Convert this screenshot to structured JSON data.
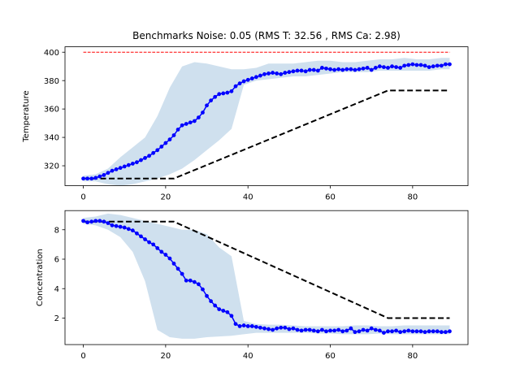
{
  "figure": {
    "title": "Benchmarks Noise: 0.05 (RMS T: 32.56 , RMS Ca: 2.98)"
  },
  "colors": {
    "data_series": "#0000ff",
    "band": "#cfe0ee",
    "target": "#000000",
    "limit": "#ff0000"
  },
  "chart_data": [
    {
      "type": "line",
      "ylabel": "Temperature",
      "xlim": [
        -4.45,
        93.45
      ],
      "ylim": [
        306.0,
        403.8
      ],
      "xticks": [
        0,
        20,
        40,
        60,
        80
      ],
      "yticks": [
        320,
        340,
        360,
        380,
        400
      ],
      "series": [
        {
          "style": "line-with-dots",
          "x": [
            0,
            1,
            2,
            3,
            4,
            5,
            6,
            7,
            8,
            9,
            10,
            11,
            12,
            13,
            14,
            15,
            16,
            17,
            18,
            19,
            20,
            21,
            22,
            23,
            24,
            25,
            26,
            27,
            28,
            29,
            30,
            31,
            32,
            33,
            34,
            35,
            36,
            37,
            38,
            39,
            40,
            41,
            42,
            43,
            44,
            45,
            46,
            47,
            48,
            49,
            50,
            51,
            52,
            53,
            54,
            55,
            56,
            57,
            58,
            59,
            60,
            61,
            62,
            63,
            64,
            65,
            66,
            67,
            68,
            69,
            70,
            71,
            72,
            73,
            74,
            75,
            76,
            77,
            78,
            79,
            80,
            81,
            82,
            83,
            84,
            85,
            86,
            87,
            88,
            89
          ],
          "values": [
            311,
            311,
            311,
            311.5,
            312.5,
            313.5,
            315,
            316.5,
            317.5,
            318.5,
            319.5,
            320.5,
            321.5,
            322.5,
            324,
            325.5,
            327,
            329,
            331,
            333.5,
            336,
            338.5,
            341.5,
            345.5,
            348.5,
            349.5,
            350.5,
            351.5,
            354,
            357.5,
            362.5,
            366,
            368.5,
            370.5,
            371,
            371.5,
            372.5,
            376,
            378,
            379.5,
            380.5,
            381.5,
            382.5,
            383.5,
            384.5,
            385,
            385.5,
            385,
            384.5,
            385.5,
            386,
            386.5,
            387,
            387,
            386.5,
            387.5,
            387.5,
            387,
            389,
            388.5,
            388,
            387.5,
            388,
            387.5,
            388,
            388,
            387.5,
            388,
            388.5,
            389,
            387.5,
            389,
            390,
            389.5,
            389,
            390,
            389.5,
            389,
            390.5,
            391,
            391.5,
            391,
            391,
            390.5,
            389.5,
            390,
            390.5,
            390.5,
            391.5,
            391.5
          ]
        },
        {
          "style": "band",
          "x": [
            0,
            3,
            6,
            9,
            12,
            15,
            18,
            21,
            24,
            27,
            30,
            33,
            36,
            39,
            42,
            45,
            48,
            51,
            54,
            57,
            60,
            63,
            66,
            69,
            72,
            75,
            78,
            81,
            84,
            87,
            89
          ],
          "lower": [
            309,
            309,
            307,
            306,
            307,
            309,
            311,
            314,
            318,
            324,
            331,
            338,
            346,
            377,
            380,
            381,
            382,
            383,
            383,
            384,
            385,
            386,
            386,
            386,
            387,
            387,
            387,
            387,
            387,
            388,
            388
          ],
          "upper": [
            313,
            314,
            318,
            326,
            333,
            340,
            355,
            375,
            390,
            393,
            392,
            390,
            388,
            388,
            389,
            392,
            392,
            392,
            393,
            394,
            394,
            393,
            393,
            394,
            395,
            395,
            396,
            395,
            395,
            396,
            396
          ]
        },
        {
          "style": "dashed",
          "x": [
            0,
            22,
            74,
            89
          ],
          "values": [
            311,
            311,
            373,
            373
          ]
        },
        {
          "style": "dashed-thin",
          "x": [
            0,
            89
          ],
          "values": [
            400,
            400
          ]
        }
      ]
    },
    {
      "type": "line",
      "ylabel": "Concentration",
      "xlim": [
        -4.45,
        93.45
      ],
      "ylim": [
        0.2,
        9.3
      ],
      "xticks": [
        0,
        20,
        40,
        60,
        80
      ],
      "yticks": [
        2,
        4,
        6,
        8
      ],
      "series": [
        {
          "style": "line-with-dots",
          "x": [
            0,
            1,
            2,
            3,
            4,
            5,
            6,
            7,
            8,
            9,
            10,
            11,
            12,
            13,
            14,
            15,
            16,
            17,
            18,
            19,
            20,
            21,
            22,
            23,
            24,
            25,
            26,
            27,
            28,
            29,
            30,
            31,
            32,
            33,
            34,
            35,
            36,
            37,
            38,
            39,
            40,
            41,
            42,
            43,
            44,
            45,
            46,
            47,
            48,
            49,
            50,
            51,
            52,
            53,
            54,
            55,
            56,
            57,
            58,
            59,
            60,
            61,
            62,
            63,
            64,
            65,
            66,
            67,
            68,
            69,
            70,
            71,
            72,
            73,
            74,
            75,
            76,
            77,
            78,
            79,
            80,
            81,
            82,
            83,
            84,
            85,
            86,
            87,
            88,
            89
          ],
          "values": [
            8.6,
            8.5,
            8.55,
            8.6,
            8.6,
            8.55,
            8.45,
            8.3,
            8.25,
            8.2,
            8.15,
            8.05,
            7.95,
            7.75,
            7.55,
            7.35,
            7.15,
            7.0,
            6.75,
            6.5,
            6.3,
            6.05,
            5.7,
            5.35,
            5.0,
            4.55,
            4.55,
            4.45,
            4.3,
            3.95,
            3.5,
            3.15,
            2.85,
            2.6,
            2.5,
            2.4,
            2.15,
            1.6,
            1.45,
            1.5,
            1.45,
            1.45,
            1.4,
            1.35,
            1.3,
            1.25,
            1.2,
            1.3,
            1.35,
            1.35,
            1.25,
            1.3,
            1.2,
            1.15,
            1.2,
            1.2,
            1.15,
            1.1,
            1.2,
            1.1,
            1.15,
            1.15,
            1.2,
            1.1,
            1.15,
            1.3,
            1.05,
            1.1,
            1.2,
            1.15,
            1.3,
            1.2,
            1.15,
            1.0,
            1.1,
            1.1,
            1.15,
            1.05,
            1.1,
            1.15,
            1.1,
            1.1,
            1.1,
            1.05,
            1.1,
            1.1,
            1.1,
            1.05,
            1.05,
            1.1
          ]
        },
        {
          "style": "band",
          "x": [
            0,
            3,
            6,
            9,
            12,
            15,
            18,
            21,
            24,
            27,
            30,
            33,
            36,
            39,
            42,
            45,
            48,
            51,
            54,
            57,
            60,
            63,
            66,
            69,
            72,
            75,
            78,
            81,
            84,
            87,
            89
          ],
          "lower": [
            8.4,
            8.3,
            8.0,
            7.5,
            6.5,
            4.5,
            1.2,
            0.7,
            0.6,
            0.6,
            0.7,
            0.75,
            0.8,
            0.9,
            1.0,
            1.0,
            1.0,
            1.0,
            1.0,
            0.95,
            0.95,
            0.9,
            0.9,
            0.9,
            0.95,
            0.9,
            0.9,
            0.9,
            0.9,
            0.9,
            0.9
          ],
          "upper": [
            8.8,
            8.9,
            9.1,
            9.0,
            8.8,
            8.6,
            8.4,
            8.2,
            8.0,
            8.0,
            7.7,
            6.8,
            6.2,
            1.8,
            1.6,
            1.55,
            1.55,
            1.5,
            1.45,
            1.45,
            1.45,
            1.45,
            1.5,
            1.5,
            1.45,
            1.45,
            1.5,
            1.5,
            1.5,
            1.5,
            1.5
          ]
        },
        {
          "style": "dashed",
          "x": [
            0,
            22,
            74,
            89
          ],
          "values": [
            8.55,
            8.55,
            2.0,
            2.0
          ]
        }
      ]
    }
  ]
}
